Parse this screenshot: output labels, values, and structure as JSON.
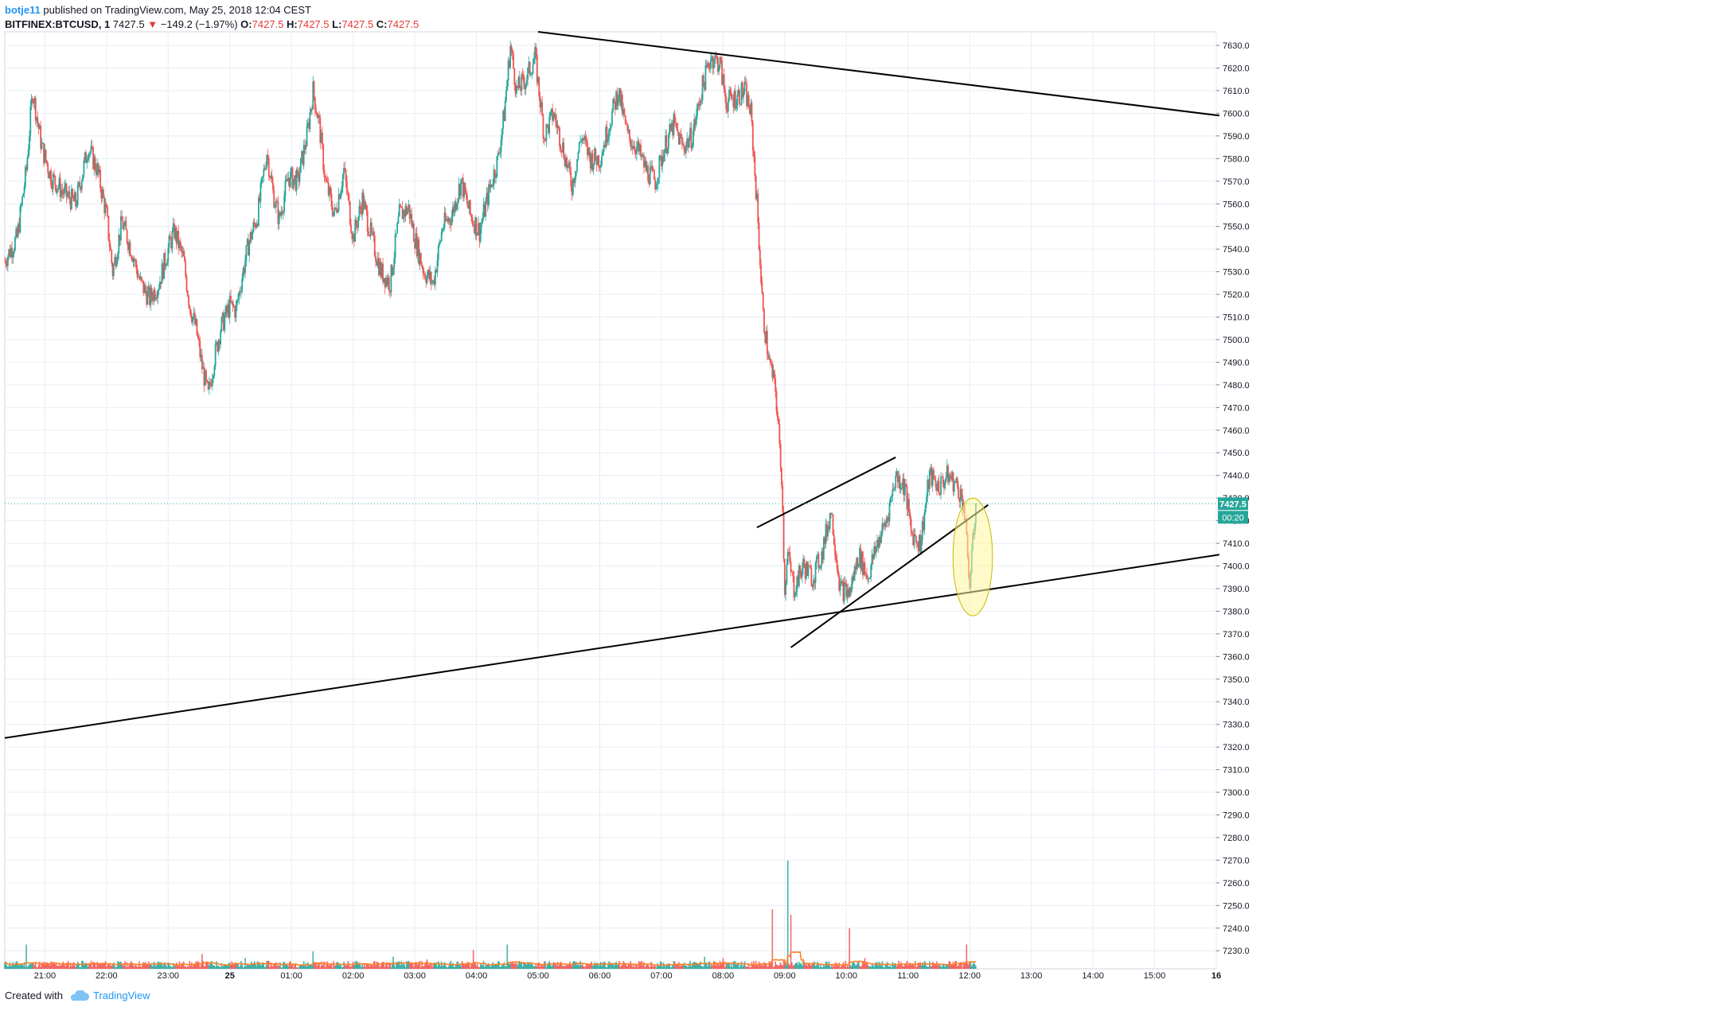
{
  "header": {
    "user": "botje11",
    "published": "published on TradingView.com, May 25, 2018 12:04 CEST"
  },
  "legend": {
    "symbol": "BITFINEX:BTCUSD, 1",
    "last": "7427.5",
    "change": "−149.2 (−1.97%)",
    "o_label": "O:",
    "o": "7427.5",
    "h_label": "H:",
    "h": "7427.5",
    "l_label": "L:",
    "l": "7427.5",
    "c_label": "C:",
    "c": "7427.5"
  },
  "footer": {
    "created_with": "Created with",
    "brand": "TradingView",
    "brand_icon": "cloud-logo-icon"
  },
  "colors": {
    "up": "#26a69a",
    "down": "#ef5350",
    "ma": "#ff7f27",
    "ma2": "#e8a23c",
    "grid": "#e6eef5",
    "ellipse": "#fff59d",
    "price_tag": "#26a69a"
  },
  "chart_data": {
    "type": "candlestick",
    "symbol": "BITFINEX:BTCUSD",
    "interval": "1",
    "ylim": [
      7222,
      7636
    ],
    "y_ticks": [
      7630.0,
      7620.0,
      7610.0,
      7600.0,
      7590.0,
      7580.0,
      7570.0,
      7560.0,
      7550.0,
      7540.0,
      7530.0,
      7520.0,
      7510.0,
      7500.0,
      7490.0,
      7480.0,
      7470.0,
      7460.0,
      7450.0,
      7440.0,
      7430.0,
      7420.0,
      7410.0,
      7400.0,
      7390.0,
      7380.0,
      7370.0,
      7360.0,
      7350.0,
      7340.0,
      7330.0,
      7320.0,
      7310.0,
      7300.0,
      7290.0,
      7280.0,
      7270.0,
      7260.0,
      7250.0,
      7240.0,
      7230.0
    ],
    "y_tick_labels": [
      "7630.0",
      "7620.0",
      "7610.0",
      "7600.0",
      "7590.0",
      "7580.0",
      "7570.0",
      "7560.0",
      "7550.0",
      "7540.0",
      "7530.0",
      "7520.0",
      "7510.0",
      "7500.0",
      "7490.0",
      "7480.0",
      "7470.0",
      "7460.0",
      "7450.0",
      "7440.0",
      "7430.0",
      "7420.0",
      "7410.0",
      "7400.0",
      "7390.0",
      "7380.0",
      "7370.0",
      "7360.0",
      "7350.0",
      "7340.0",
      "7330.0",
      "7320.0",
      "7310.0",
      "7300.0",
      "7290.0",
      "7280.0",
      "7270.0",
      "7260.0",
      "7250.0",
      "7240.0",
      "7230.0"
    ],
    "x_range_hours": [
      20.35,
      40.0
    ],
    "x_ticks": [
      21,
      22,
      23,
      24,
      25,
      26,
      27,
      28,
      29,
      30,
      31,
      32,
      33,
      34,
      35,
      36,
      37,
      38,
      39,
      40
    ],
    "x_tick_labels": [
      "21:00",
      "22:00",
      "23:00",
      "25",
      "01:00",
      "02:00",
      "03:00",
      "04:00",
      "05:00",
      "06:00",
      "07:00",
      "08:00",
      "09:00",
      "10:00",
      "11:00",
      "12:00",
      "13:00",
      "14:00",
      "15:00",
      "16"
    ],
    "last_price": 7427.5,
    "last_price_label": "7427.5",
    "countdown_label": "00:20",
    "price_path": [
      [
        20.35,
        7535
      ],
      [
        20.55,
        7545
      ],
      [
        20.7,
        7575
      ],
      [
        20.8,
        7610
      ],
      [
        20.95,
        7585
      ],
      [
        21.1,
        7572
      ],
      [
        21.3,
        7565
      ],
      [
        21.5,
        7560
      ],
      [
        21.7,
        7585
      ],
      [
        21.85,
        7575
      ],
      [
        22.0,
        7555
      ],
      [
        22.1,
        7530
      ],
      [
        22.25,
        7552
      ],
      [
        22.4,
        7540
      ],
      [
        22.55,
        7525
      ],
      [
        22.7,
        7518
      ],
      [
        22.85,
        7525
      ],
      [
        23.0,
        7540
      ],
      [
        23.1,
        7548
      ],
      [
        23.25,
        7535
      ],
      [
        23.35,
        7515
      ],
      [
        23.45,
        7505
      ],
      [
        23.55,
        7488
      ],
      [
        23.65,
        7475
      ],
      [
        23.75,
        7492
      ],
      [
        23.85,
        7505
      ],
      [
        24.0,
        7515
      ],
      [
        24.1,
        7513
      ],
      [
        24.2,
        7528
      ],
      [
        24.3,
        7542
      ],
      [
        24.45,
        7555
      ],
      [
        24.6,
        7583
      ],
      [
        24.7,
        7565
      ],
      [
        24.8,
        7553
      ],
      [
        24.95,
        7572
      ],
      [
        25.1,
        7570
      ],
      [
        25.25,
        7590
      ],
      [
        25.35,
        7610
      ],
      [
        25.45,
        7595
      ],
      [
        25.55,
        7570
      ],
      [
        25.7,
        7555
      ],
      [
        25.85,
        7575
      ],
      [
        26.0,
        7545
      ],
      [
        26.15,
        7562
      ],
      [
        26.3,
        7545
      ],
      [
        26.45,
        7530
      ],
      [
        26.6,
        7525
      ],
      [
        26.75,
        7555
      ],
      [
        26.9,
        7558
      ],
      [
        27.0,
        7545
      ],
      [
        27.15,
        7530
      ],
      [
        27.3,
        7525
      ],
      [
        27.45,
        7550
      ],
      [
        27.6,
        7555
      ],
      [
        27.75,
        7570
      ],
      [
        27.9,
        7555
      ],
      [
        28.05,
        7548
      ],
      [
        28.2,
        7565
      ],
      [
        28.35,
        7580
      ],
      [
        28.45,
        7600
      ],
      [
        28.55,
        7630
      ],
      [
        28.65,
        7610
      ],
      [
        28.8,
        7615
      ],
      [
        28.95,
        7625
      ],
      [
        29.1,
        7590
      ],
      [
        29.25,
        7600
      ],
      [
        29.4,
        7585
      ],
      [
        29.55,
        7568
      ],
      [
        29.7,
        7590
      ],
      [
        29.85,
        7580
      ],
      [
        30.0,
        7580
      ],
      [
        30.15,
        7595
      ],
      [
        30.3,
        7610
      ],
      [
        30.45,
        7590
      ],
      [
        30.6,
        7585
      ],
      [
        30.75,
        7575
      ],
      [
        30.9,
        7570
      ],
      [
        31.05,
        7585
      ],
      [
        31.2,
        7595
      ],
      [
        31.35,
        7585
      ],
      [
        31.5,
        7590
      ],
      [
        31.65,
        7610
      ],
      [
        31.8,
        7625
      ],
      [
        31.95,
        7622
      ],
      [
        32.05,
        7605
      ],
      [
        32.2,
        7607
      ],
      [
        32.35,
        7610
      ],
      [
        32.45,
        7600
      ],
      [
        32.55,
        7560
      ],
      [
        32.65,
        7510
      ],
      [
        32.75,
        7490
      ],
      [
        32.85,
        7478
      ],
      [
        32.95,
        7440
      ],
      [
        33.0,
        7390
      ],
      [
        33.05,
        7405
      ],
      [
        33.15,
        7390
      ],
      [
        33.3,
        7400
      ],
      [
        33.45,
        7395
      ],
      [
        33.6,
        7405
      ],
      [
        33.75,
        7425
      ],
      [
        33.9,
        7390
      ],
      [
        34.05,
        7388
      ],
      [
        34.2,
        7405
      ],
      [
        34.35,
        7395
      ],
      [
        34.5,
        7410
      ],
      [
        34.65,
        7420
      ],
      [
        34.8,
        7440
      ],
      [
        34.95,
        7435
      ],
      [
        35.05,
        7415
      ],
      [
        35.2,
        7410
      ],
      [
        35.35,
        7440
      ],
      [
        35.5,
        7435
      ],
      [
        35.65,
        7440
      ],
      [
        35.8,
        7435
      ],
      [
        35.9,
        7428
      ],
      [
        36.0,
        7392
      ],
      [
        36.1,
        7427.5
      ]
    ],
    "volume_ylim": [
      0,
      100
    ],
    "volume_spikes": [
      [
        20.7,
        18
      ],
      [
        21.6,
        6
      ],
      [
        22.2,
        5
      ],
      [
        23.55,
        11
      ],
      [
        24.25,
        8
      ],
      [
        25.35,
        13
      ],
      [
        26.65,
        9
      ],
      [
        27.2,
        7
      ],
      [
        27.95,
        14
      ],
      [
        28.5,
        18
      ],
      [
        31.7,
        9
      ],
      [
        32.0,
        8
      ],
      [
        32.8,
        44
      ],
      [
        33.05,
        80
      ],
      [
        33.1,
        40
      ],
      [
        34.05,
        30
      ],
      [
        34.3,
        8
      ],
      [
        35.5,
        4
      ],
      [
        35.95,
        18
      ]
    ],
    "trendlines": [
      {
        "name": "upper-resistance",
        "p1": [
          29.0,
          7636
        ],
        "p2": [
          40.05,
          7599
        ]
      },
      {
        "name": "lower-support",
        "p1": [
          20.35,
          7324
        ],
        "p2": [
          40.05,
          7405
        ]
      },
      {
        "name": "channel-upper",
        "p1": [
          32.55,
          7417
        ],
        "p2": [
          34.8,
          7448
        ]
      },
      {
        "name": "channel-lower",
        "p1": [
          33.1,
          7364
        ],
        "p2": [
          36.3,
          7427
        ]
      }
    ],
    "highlight": {
      "center": [
        36.05,
        7404
      ],
      "rx_hours": 0.32,
      "ry_price": 26
    },
    "grid": true
  }
}
